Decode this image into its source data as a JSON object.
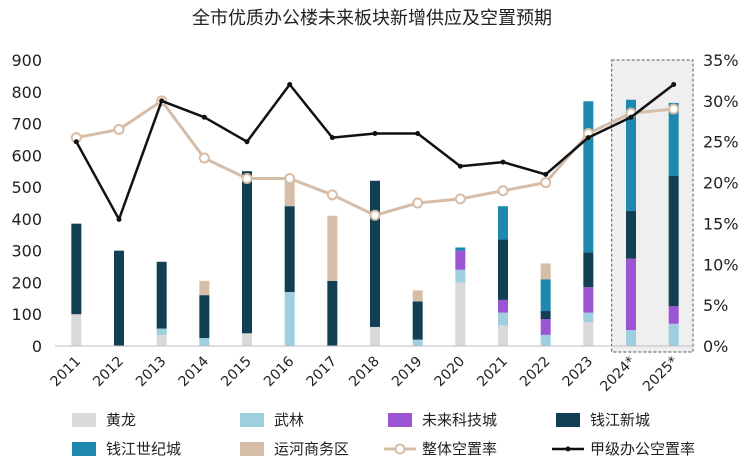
{
  "chart_data": {
    "type": "bar",
    "title": "全市优质办公楼未来板块新增供应及空置预期",
    "categories": [
      "2011",
      "2012",
      "2013",
      "2014",
      "2015",
      "2016",
      "2017",
      "2018",
      "2019",
      "2020",
      "2021",
      "2022",
      "2023",
      "2024*",
      "2025*"
    ],
    "stacked": true,
    "y_left": {
      "range": [
        0,
        900
      ],
      "ticks": [
        "0",
        "100",
        "200",
        "300",
        "400",
        "500",
        "600",
        "700",
        "800",
        "900"
      ]
    },
    "y_right": {
      "range": [
        0,
        35
      ],
      "ticks": [
        "0%",
        "5%",
        "10%",
        "15%",
        "20%",
        "25%",
        "30%",
        "35%"
      ]
    },
    "forecast_categories": [
      "2024*",
      "2025*"
    ],
    "series": [
      {
        "name": "黄龙",
        "color": "#d9d9d9",
        "kind": "bar",
        "values": [
          100,
          0,
          35,
          0,
          40,
          0,
          0,
          60,
          0,
          200,
          65,
          0,
          75,
          0,
          0
        ]
      },
      {
        "name": "武林",
        "color": "#9ecfdf",
        "kind": "bar",
        "values": [
          0,
          0,
          20,
          25,
          0,
          170,
          0,
          0,
          20,
          40,
          40,
          35,
          30,
          50,
          70
        ]
      },
      {
        "name": "未来科技城",
        "color": "#9b57d3",
        "kind": "bar",
        "values": [
          0,
          0,
          0,
          0,
          0,
          0,
          0,
          0,
          0,
          60,
          40,
          50,
          80,
          225,
          55
        ]
      },
      {
        "name": "钱江新城",
        "color": "#123f54",
        "kind": "bar",
        "values": [
          285,
          300,
          210,
          135,
          510,
          270,
          205,
          460,
          120,
          0,
          190,
          25,
          110,
          150,
          410
        ]
      },
      {
        "name": "钱江世纪城",
        "color": "#1f88ae",
        "kind": "bar",
        "values": [
          0,
          0,
          0,
          0,
          0,
          0,
          0,
          0,
          0,
          10,
          105,
          100,
          475,
          350,
          230
        ]
      },
      {
        "name": "运河商务区",
        "color": "#d6bda8",
        "kind": "bar",
        "values": [
          0,
          0,
          0,
          45,
          0,
          80,
          205,
          0,
          35,
          0,
          0,
          50,
          0,
          0,
          0
        ]
      },
      {
        "name": "整体空置率",
        "color": "#d6bda8",
        "kind": "line",
        "marker": "circle",
        "values": [
          25.5,
          26.5,
          30,
          23,
          20.5,
          20.5,
          18.5,
          16,
          17.5,
          18,
          19,
          20,
          26,
          28.5,
          29
        ]
      },
      {
        "name": "甲级办公空置率",
        "color": "#111111",
        "kind": "line",
        "marker": "dot",
        "values": [
          25,
          15.5,
          30,
          28,
          25,
          32,
          25.5,
          26,
          26,
          22,
          22.5,
          21,
          25.5,
          28,
          32
        ]
      }
    ],
    "legend": "bottom",
    "grid": false
  }
}
